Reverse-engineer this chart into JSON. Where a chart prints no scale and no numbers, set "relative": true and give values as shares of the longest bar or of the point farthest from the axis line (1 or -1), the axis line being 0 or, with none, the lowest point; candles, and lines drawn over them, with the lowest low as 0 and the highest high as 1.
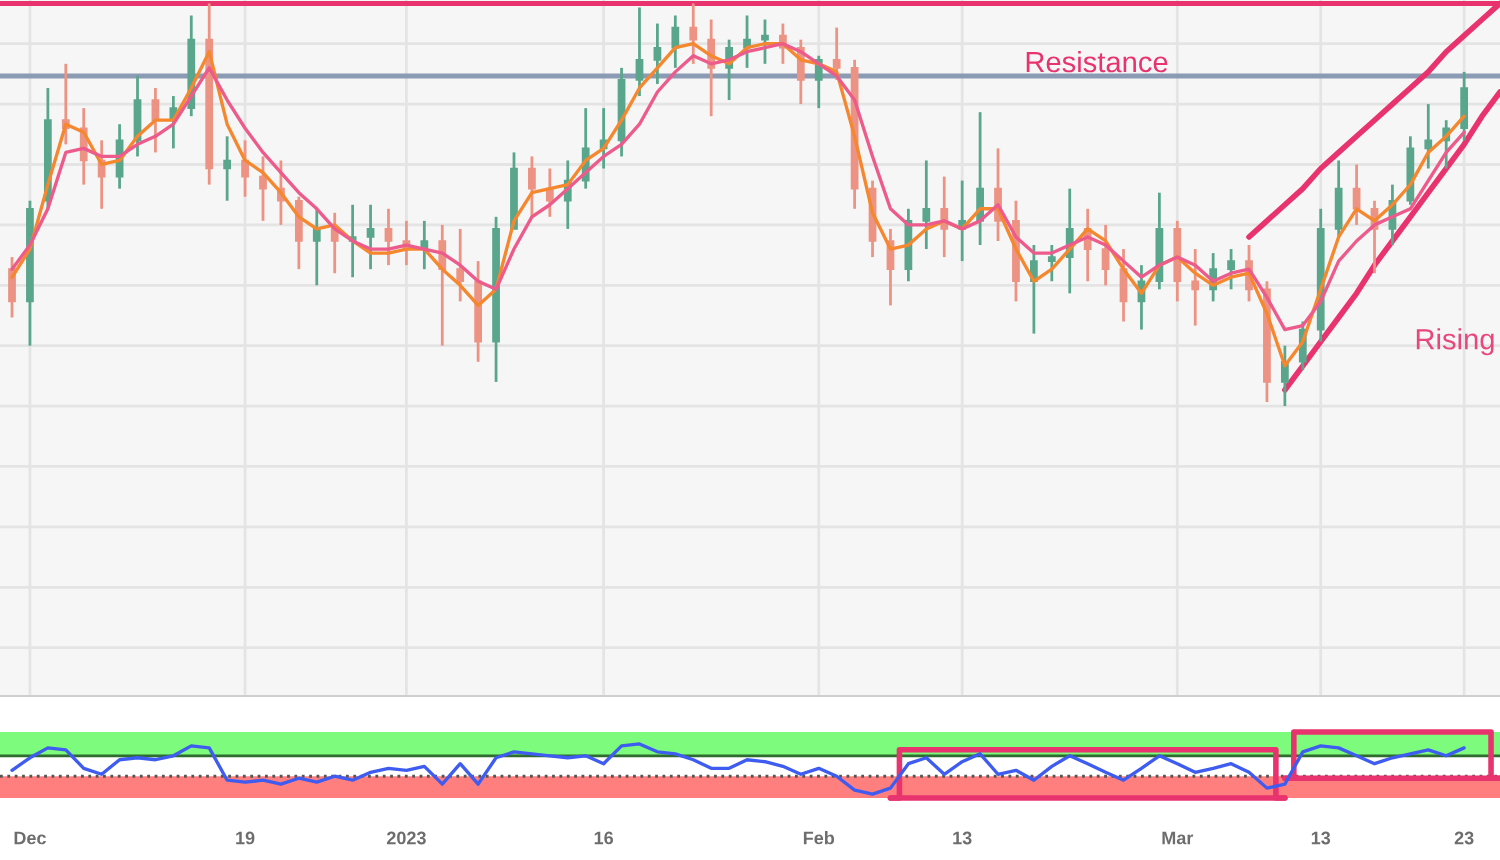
{
  "chart_data": [
    {
      "type": "candlestick",
      "relative": true,
      "grid": true,
      "categories": [
        null,
        null,
        null,
        null,
        null,
        null,
        null,
        null,
        null,
        null,
        null,
        null,
        null,
        null,
        null,
        null,
        null,
        null,
        null,
        null,
        null,
        null,
        null,
        null,
        null,
        null,
        null,
        null,
        null,
        null,
        null,
        null,
        null,
        null,
        null,
        null,
        null,
        null,
        null,
        null,
        null,
        null,
        null,
        null,
        null,
        null,
        null,
        null,
        null,
        null,
        null,
        null,
        null,
        null,
        null,
        null,
        null,
        null,
        null,
        null,
        null,
        null,
        null,
        null,
        null,
        null,
        null,
        null,
        null,
        null,
        null,
        null,
        null,
        null,
        null,
        null,
        null,
        null,
        null,
        null,
        null,
        null,
        null,
        null
      ],
      "ohlc": [
        [
          0.34,
          0.37,
          0.22,
          0.26
        ],
        [
          0.26,
          0.51,
          0.15,
          0.49
        ],
        [
          0.51,
          0.79,
          0.49,
          0.71
        ],
        [
          0.71,
          0.85,
          0.65,
          0.69
        ],
        [
          0.69,
          0.74,
          0.55,
          0.61
        ],
        [
          0.61,
          0.66,
          0.49,
          0.57
        ],
        [
          0.57,
          0.7,
          0.54,
          0.66
        ],
        [
          0.66,
          0.82,
          0.62,
          0.76
        ],
        [
          0.76,
          0.79,
          0.63,
          0.71
        ],
        [
          0.71,
          0.77,
          0.64,
          0.74
        ],
        [
          0.74,
          0.97,
          0.72,
          0.91
        ],
        [
          0.91,
          1.0,
          0.55,
          0.59
        ],
        [
          0.59,
          0.67,
          0.51,
          0.61
        ],
        [
          0.61,
          0.66,
          0.52,
          0.57
        ],
        [
          0.57,
          0.62,
          0.46,
          0.54
        ],
        [
          0.54,
          0.61,
          0.45,
          0.51
        ],
        [
          0.51,
          0.52,
          0.34,
          0.41
        ],
        [
          0.41,
          0.49,
          0.3,
          0.44
        ],
        [
          0.44,
          0.48,
          0.33,
          0.41
        ],
        [
          0.41,
          0.5,
          0.32,
          0.42
        ],
        [
          0.42,
          0.5,
          0.34,
          0.44
        ],
        [
          0.44,
          0.49,
          0.35,
          0.41
        ],
        [
          0.41,
          0.46,
          0.35,
          0.39
        ],
        [
          0.39,
          0.46,
          0.34,
          0.41
        ],
        [
          0.41,
          0.45,
          0.15,
          0.34
        ],
        [
          0.34,
          0.44,
          0.26,
          0.31
        ],
        [
          0.31,
          0.36,
          0.11,
          0.16
        ],
        [
          0.16,
          0.47,
          0.06,
          0.44
        ],
        [
          0.44,
          0.63,
          0.44,
          0.59
        ],
        [
          0.59,
          0.62,
          0.47,
          0.54
        ],
        [
          0.54,
          0.59,
          0.47,
          0.51
        ],
        [
          0.51,
          0.61,
          0.44,
          0.56
        ],
        [
          0.56,
          0.74,
          0.54,
          0.64
        ],
        [
          0.64,
          0.74,
          0.59,
          0.66
        ],
        [
          0.66,
          0.84,
          0.62,
          0.81
        ],
        [
          0.81,
          0.99,
          0.77,
          0.86
        ],
        [
          0.86,
          0.95,
          0.8,
          0.89
        ],
        [
          0.89,
          0.97,
          0.84,
          0.94
        ],
        [
          0.94,
          1.0,
          0.85,
          0.91
        ],
        [
          0.91,
          0.96,
          0.72,
          0.84
        ],
        [
          0.84,
          0.91,
          0.76,
          0.89
        ],
        [
          0.89,
          0.97,
          0.84,
          0.91
        ],
        [
          0.91,
          0.96,
          0.85,
          0.92
        ],
        [
          0.92,
          0.95,
          0.85,
          0.89
        ],
        [
          0.89,
          0.91,
          0.75,
          0.81
        ],
        [
          0.81,
          0.87,
          0.74,
          0.86
        ],
        [
          0.86,
          0.94,
          0.81,
          0.84
        ],
        [
          0.84,
          0.86,
          0.49,
          0.54
        ],
        [
          0.54,
          0.56,
          0.37,
          0.41
        ],
        [
          0.41,
          0.44,
          0.25,
          0.34
        ],
        [
          0.34,
          0.49,
          0.31,
          0.46
        ],
        [
          0.46,
          0.61,
          0.39,
          0.49
        ],
        [
          0.49,
          0.57,
          0.37,
          0.44
        ],
        [
          0.44,
          0.56,
          0.36,
          0.46
        ],
        [
          0.46,
          0.73,
          0.4,
          0.54
        ],
        [
          0.54,
          0.64,
          0.41,
          0.46
        ],
        [
          0.46,
          0.51,
          0.26,
          0.31
        ],
        [
          0.31,
          0.4,
          0.18,
          0.36
        ],
        [
          0.36,
          0.4,
          0.31,
          0.37
        ],
        [
          0.37,
          0.54,
          0.28,
          0.44
        ],
        [
          0.44,
          0.49,
          0.31,
          0.39
        ],
        [
          0.39,
          0.45,
          0.3,
          0.34
        ],
        [
          0.34,
          0.39,
          0.21,
          0.26
        ],
        [
          0.26,
          0.35,
          0.19,
          0.31
        ],
        [
          0.31,
          0.53,
          0.29,
          0.44
        ],
        [
          0.44,
          0.46,
          0.26,
          0.31
        ],
        [
          0.31,
          0.39,
          0.2,
          0.29
        ],
        [
          0.29,
          0.38,
          0.26,
          0.34
        ],
        [
          0.34,
          0.39,
          0.29,
          0.36
        ],
        [
          0.36,
          0.4,
          0.26,
          0.29
        ],
        [
          0.29,
          0.31,
          0.01,
          0.06
        ],
        [
          0.06,
          0.15,
          0.0,
          0.11
        ],
        [
          0.11,
          0.21,
          0.09,
          0.19
        ],
        [
          0.19,
          0.49,
          0.16,
          0.44
        ],
        [
          0.44,
          0.61,
          0.42,
          0.54
        ],
        [
          0.54,
          0.6,
          0.45,
          0.49
        ],
        [
          0.49,
          0.51,
          0.33,
          0.44
        ],
        [
          0.44,
          0.55,
          0.4,
          0.51
        ],
        [
          0.51,
          0.67,
          0.5,
          0.64
        ],
        [
          0.64,
          0.75,
          0.59,
          0.66
        ],
        [
          0.66,
          0.71,
          0.59,
          0.69
        ],
        [
          0.69,
          0.83,
          0.66,
          0.79
        ],
        null,
        null
      ],
      "series": [
        {
          "type": "line",
          "color": "#f5872e",
          "values": [
            0.32,
            0.39,
            0.55,
            0.7,
            0.68,
            0.6,
            0.61,
            0.67,
            0.71,
            0.71,
            0.79,
            0.88,
            0.7,
            0.61,
            0.58,
            0.53,
            0.47,
            0.44,
            0.45,
            0.41,
            0.38,
            0.38,
            0.39,
            0.39,
            0.34,
            0.3,
            0.25,
            0.29,
            0.46,
            0.53,
            0.54,
            0.55,
            0.61,
            0.64,
            0.71,
            0.79,
            0.84,
            0.89,
            0.9,
            0.87,
            0.85,
            0.89,
            0.9,
            0.9,
            0.86,
            0.85,
            0.83,
            0.67,
            0.48,
            0.39,
            0.4,
            0.44,
            0.46,
            0.44,
            0.49,
            0.49,
            0.39,
            0.31,
            0.34,
            0.39,
            0.44,
            0.41,
            0.34,
            0.28,
            0.35,
            0.37,
            0.33,
            0.3,
            0.32,
            0.33,
            0.23,
            0.1,
            0.16,
            0.29,
            0.42,
            0.49,
            0.46,
            0.5,
            0.55,
            0.63,
            0.67,
            0.72,
            null,
            null
          ]
        },
        {
          "type": "line",
          "color": "#ec5b8c",
          "values": [
            0.34,
            0.4,
            0.49,
            0.63,
            0.64,
            0.62,
            0.62,
            0.65,
            0.67,
            0.7,
            0.77,
            0.84,
            0.76,
            0.69,
            0.63,
            0.58,
            0.53,
            0.49,
            0.44,
            0.41,
            0.39,
            0.39,
            0.4,
            0.39,
            0.38,
            0.35,
            0.31,
            0.29,
            0.39,
            0.47,
            0.5,
            0.54,
            0.58,
            0.62,
            0.65,
            0.7,
            0.78,
            0.83,
            0.87,
            0.85,
            0.86,
            0.88,
            0.89,
            0.9,
            0.88,
            0.85,
            0.82,
            0.76,
            0.62,
            0.49,
            0.45,
            0.45,
            0.46,
            0.44,
            0.46,
            0.5,
            0.42,
            0.38,
            0.38,
            0.4,
            0.42,
            0.4,
            0.36,
            0.32,
            0.35,
            0.37,
            0.35,
            0.31,
            0.33,
            0.34,
            0.27,
            0.19,
            0.2,
            0.26,
            0.36,
            0.41,
            0.45,
            0.47,
            0.49,
            0.56,
            0.63,
            0.68,
            null,
            null
          ]
        },
        {
          "type": "line",
          "color": "#e8336e",
          "line_style": "solid",
          "values": [
            null,
            null,
            null,
            null,
            null,
            null,
            null,
            null,
            null,
            null,
            null,
            null,
            null,
            null,
            null,
            null,
            null,
            null,
            null,
            null,
            null,
            null,
            null,
            null,
            null,
            null,
            null,
            null,
            null,
            null,
            null,
            null,
            null,
            null,
            null,
            null,
            null,
            null,
            null,
            null,
            null,
            null,
            null,
            null,
            null,
            null,
            null,
            null,
            null,
            null,
            null,
            null,
            null,
            null,
            null,
            null,
            null,
            null,
            null,
            null,
            null,
            null,
            null,
            null,
            null,
            null,
            null,
            null,
            null,
            0.42,
            0.46,
            0.5,
            0.54,
            0.59,
            0.63,
            0.67,
            0.71,
            0.75,
            0.79,
            0.83,
            0.88,
            0.92,
            0.96,
            1.0
          ]
        },
        {
          "type": "line",
          "color": "#e8336e",
          "line_style": "solid",
          "values": [
            null,
            null,
            null,
            null,
            null,
            null,
            null,
            null,
            null,
            null,
            null,
            null,
            null,
            null,
            null,
            null,
            null,
            null,
            null,
            null,
            null,
            null,
            null,
            null,
            null,
            null,
            null,
            null,
            null,
            null,
            null,
            null,
            null,
            null,
            null,
            null,
            null,
            null,
            null,
            null,
            null,
            null,
            null,
            null,
            null,
            null,
            null,
            null,
            null,
            null,
            null,
            null,
            null,
            null,
            null,
            null,
            null,
            null,
            null,
            null,
            null,
            null,
            null,
            null,
            null,
            null,
            null,
            null,
            null,
            null,
            null,
            0.04,
            0.1,
            0.16,
            0.22,
            0.28,
            0.35,
            0.41,
            0.47,
            0.53,
            0.59,
            0.65,
            0.72,
            0.78
          ]
        }
      ],
      "ref_lines": [
        {
          "axis": "y",
          "value": 1.0,
          "label": "Resistance",
          "color": "#e8336e"
        },
        {
          "axis": "y",
          "value": 0.82,
          "color": "#8a9bb3"
        }
      ],
      "annotations": [
        "Rising"
      ]
    },
    {
      "type": "line",
      "relative": true,
      "categories": [
        null,
        "Dec",
        null,
        null,
        null,
        null,
        null,
        null,
        null,
        null,
        null,
        null,
        null,
        "19",
        null,
        null,
        null,
        null,
        null,
        null,
        null,
        null,
        "2023",
        null,
        null,
        null,
        null,
        null,
        null,
        null,
        null,
        null,
        null,
        "16",
        null,
        null,
        null,
        null,
        null,
        null,
        null,
        null,
        null,
        null,
        null,
        "Feb",
        null,
        null,
        null,
        null,
        null,
        null,
        null,
        "13",
        null,
        null,
        null,
        null,
        null,
        null,
        null,
        null,
        null,
        null,
        null,
        "Mar",
        null,
        null,
        null,
        null,
        null,
        null,
        null,
        "13",
        null,
        null,
        null,
        null,
        null,
        null,
        null,
        "23",
        null,
        null
      ],
      "series": [
        {
          "color": "#3f5cf0",
          "values": [
            0.42,
            0.61,
            0.76,
            0.73,
            0.45,
            0.36,
            0.58,
            0.61,
            0.58,
            0.64,
            0.79,
            0.76,
            0.27,
            0.24,
            0.27,
            0.21,
            0.3,
            0.24,
            0.33,
            0.27,
            0.39,
            0.45,
            0.42,
            0.48,
            0.21,
            0.52,
            0.21,
            0.61,
            0.7,
            0.67,
            0.64,
            0.61,
            0.64,
            0.52,
            0.79,
            0.82,
            0.7,
            0.67,
            0.58,
            0.45,
            0.45,
            0.58,
            0.55,
            0.48,
            0.36,
            0.45,
            0.33,
            0.12,
            0.06,
            0.15,
            0.52,
            0.61,
            0.36,
            0.55,
            0.67,
            0.36,
            0.42,
            0.27,
            0.48,
            0.64,
            0.52,
            0.39,
            0.27,
            0.45,
            0.64,
            0.52,
            0.39,
            0.45,
            0.52,
            0.39,
            0.15,
            0.21,
            0.7,
            0.79,
            0.76,
            0.64,
            0.52,
            0.61,
            0.67,
            0.73,
            0.64,
            0.76,
            null,
            null
          ]
        },
        {
          "type": "step",
          "color": "#e8336e",
          "line_style": "solid",
          "values": [
            null,
            null,
            null,
            null,
            null,
            null,
            null,
            null,
            null,
            null,
            null,
            null,
            null,
            null,
            null,
            null,
            null,
            null,
            null,
            null,
            null,
            null,
            null,
            null,
            null,
            null,
            null,
            null,
            null,
            null,
            null,
            null,
            null,
            null,
            null,
            null,
            null,
            null,
            null,
            null,
            null,
            null,
            null,
            null,
            null,
            null,
            null,
            null,
            null,
            0.0,
            0.73,
            0.73,
            0.73,
            0.73,
            0.73,
            0.73,
            0.73,
            0.73,
            0.73,
            0.73,
            0.73,
            0.73,
            0.73,
            0.73,
            0.73,
            0.73,
            0.73,
            0.73,
            0.73,
            0.73,
            0.73,
            0.0,
            null,
            null,
            null,
            null,
            null,
            null,
            null,
            null,
            null,
            null,
            null,
            null
          ]
        },
        {
          "type": "line",
          "color": "#e8336e",
          "line_style": "solid",
          "values": [
            null,
            null,
            null,
            null,
            null,
            null,
            null,
            null,
            null,
            null,
            null,
            null,
            null,
            null,
            null,
            null,
            null,
            null,
            null,
            null,
            null,
            null,
            null,
            null,
            null,
            null,
            null,
            null,
            null,
            null,
            null,
            null,
            null,
            null,
            null,
            null,
            null,
            null,
            null,
            null,
            null,
            null,
            null,
            null,
            null,
            null,
            null,
            null,
            null,
            0.0,
            0.0,
            0.0,
            0.0,
            0.0,
            0.0,
            0.0,
            0.0,
            0.0,
            0.0,
            0.0,
            0.0,
            0.0,
            0.0,
            0.0,
            0.0,
            0.0,
            0.0,
            0.0,
            0.0,
            0.0,
            0.0,
            0.0,
            null,
            null,
            null,
            null,
            null,
            null,
            null,
            null,
            null,
            null,
            null,
            null
          ]
        },
        {
          "type": "step",
          "color": "#e8336e",
          "line_style": "solid",
          "values": [
            null,
            null,
            null,
            null,
            null,
            null,
            null,
            null,
            null,
            null,
            null,
            null,
            null,
            null,
            null,
            null,
            null,
            null,
            null,
            null,
            null,
            null,
            null,
            null,
            null,
            null,
            null,
            null,
            null,
            null,
            null,
            null,
            null,
            null,
            null,
            null,
            null,
            null,
            null,
            null,
            null,
            null,
            null,
            null,
            null,
            null,
            null,
            null,
            null,
            null,
            null,
            null,
            null,
            null,
            null,
            null,
            null,
            null,
            null,
            null,
            null,
            null,
            null,
            null,
            null,
            null,
            null,
            null,
            null,
            null,
            null,
            0.3,
            1.0,
            1.0,
            1.0,
            1.0,
            1.0,
            1.0,
            1.0,
            1.0,
            1.0,
            1.0,
            1.0,
            0.3
          ]
        },
        {
          "type": "line",
          "color": "#e8336e",
          "line_style": "solid",
          "values": [
            null,
            null,
            null,
            null,
            null,
            null,
            null,
            null,
            null,
            null,
            null,
            null,
            null,
            null,
            null,
            null,
            null,
            null,
            null,
            null,
            null,
            null,
            null,
            null,
            null,
            null,
            null,
            null,
            null,
            null,
            null,
            null,
            null,
            null,
            null,
            null,
            null,
            null,
            null,
            null,
            null,
            null,
            null,
            null,
            null,
            null,
            null,
            null,
            null,
            null,
            null,
            null,
            null,
            null,
            null,
            null,
            null,
            null,
            null,
            null,
            null,
            null,
            null,
            null,
            null,
            null,
            null,
            null,
            null,
            null,
            null,
            0.3,
            0.3,
            0.3,
            0.3,
            0.3,
            0.3,
            0.3,
            0.3,
            0.3,
            0.3,
            0.3,
            0.3,
            0.3
          ]
        }
      ],
      "bands": [
        {
          "axis": "y",
          "from": 0.64,
          "to": 1.0,
          "color": "#7dfb7d"
        },
        {
          "axis": "y",
          "from": 0.0,
          "to": 0.33,
          "color": "#ff7e7e"
        }
      ],
      "ref_lines": [
        {
          "axis": "y",
          "value": 0.64,
          "color": "#2f6b2f"
        },
        {
          "axis": "y",
          "value": 0.33,
          "color": "#555555",
          "line_style": "dotted"
        }
      ]
    }
  ]
}
